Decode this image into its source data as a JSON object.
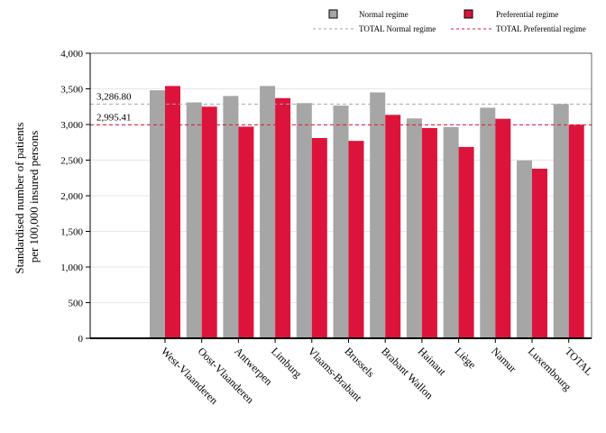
{
  "chart_data": {
    "type": "bar",
    "ylabel": "Standardised number of patients per 100,000 insured persons",
    "ylabel_lines": [
      "Standardised number of patients",
      "per 100,000 insured persons"
    ],
    "ylim": [
      0,
      4000
    ],
    "yticks": [
      0,
      500,
      1000,
      1500,
      2000,
      2500,
      3000,
      3500,
      4000
    ],
    "ytick_labels": [
      "0",
      "500",
      "1,000",
      "1,500",
      "2,000",
      "2,500",
      "3,000",
      "3,500",
      "4,000"
    ],
    "grid": "horizontal",
    "legend_position": "top-right",
    "categories": [
      "West-Vlaanderen",
      "Oost-Vlaanderen",
      "Antwerpen",
      "Limburg",
      "Vlaams-Brabant",
      "Brussels",
      "Brabant Wallon",
      "Hainaut",
      "Liège",
      "Namur",
      "Luxembourg",
      "TOTAL"
    ],
    "series": [
      {
        "name": "Normal regime",
        "color": "#a6a6a6",
        "values": [
          3480,
          3310,
          3400,
          3540,
          3300,
          3265,
          3450,
          3085,
          2965,
          3235,
          2495,
          3287
        ]
      },
      {
        "name": "Preferential regime",
        "color": "#dc143c",
        "values": [
          3540,
          3250,
          2970,
          3370,
          2810,
          2770,
          3135,
          2950,
          2685,
          3080,
          2380,
          2995
        ]
      }
    ],
    "reference_lines": [
      {
        "name": "TOTAL Normal regime",
        "value": 3286.8,
        "label": "3,286.80",
        "color": "#a6a6a6"
      },
      {
        "name": "TOTAL Preferential regime",
        "value": 2995.41,
        "label": "2,995.41",
        "color": "#dc143c"
      }
    ]
  }
}
